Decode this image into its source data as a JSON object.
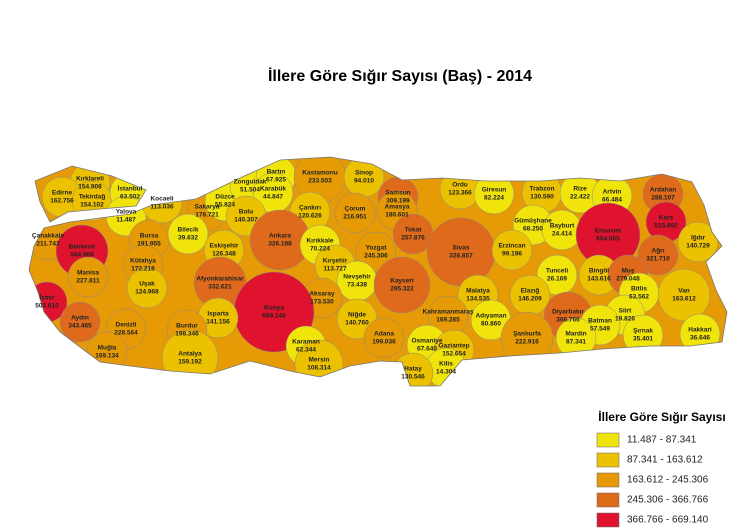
{
  "title": "İllere Göre Sığır Sayısı (Baş) - 2014",
  "legend": {
    "title": "İllere Göre Sığır Sayısı",
    "classes": [
      {
        "from": 11487,
        "to": 87341,
        "label": "11.487 - 87.341",
        "color": "#f0e40a"
      },
      {
        "from": 87341,
        "to": 163612,
        "label": "87.341 - 163.612",
        "color": "#ecc100"
      },
      {
        "from": 163612,
        "to": 245306,
        "label": "163.612 - 245.306",
        "color": "#e69a05"
      },
      {
        "from": 245306,
        "to": 366766,
        "label": "245.306 - 366.766",
        "color": "#df6a1c"
      },
      {
        "from": 366766,
        "to": 669140,
        "label": "366.766 - 669.140",
        "color": "#e0132e"
      }
    ]
  },
  "provinces": [
    {
      "name": "Kırklareli",
      "value": {
        "value": 154908,
        "label": "154.908"
      }
    },
    {
      "name": "Edirne",
      "value": {
        "value": 162756,
        "label": "162.756"
      }
    },
    {
      "name": "Tekirdağ",
      "value": {
        "value": 154102,
        "label": "154.102"
      }
    },
    {
      "name": "İstanbul",
      "value": {
        "value": 63502,
        "label": "63.502"
      }
    },
    {
      "name": "Yalova",
      "value": {
        "value": 11487,
        "label": "11.487"
      }
    },
    {
      "name": "Kocaeli",
      "value": {
        "value": 113036,
        "label": "113.036"
      }
    },
    {
      "name": "Sakarya",
      "value": {
        "value": 178721,
        "label": "178.721"
      }
    },
    {
      "name": "Düzce",
      "value": {
        "value": 55824,
        "label": "55.824"
      }
    },
    {
      "name": "Zonguldak",
      "value": {
        "value": 51504,
        "label": "51.504"
      }
    },
    {
      "name": "Bartın",
      "value": {
        "value": 67925,
        "label": "67.925"
      }
    },
    {
      "name": "Karabük",
      "value": {
        "value": 44847,
        "label": "44.847"
      }
    },
    {
      "name": "Bolu",
      "value": {
        "value": 140307,
        "label": "140.307"
      }
    },
    {
      "name": "Kastamonu",
      "value": {
        "value": 233503,
        "label": "233.503"
      }
    },
    {
      "name": "Sinop",
      "value": {
        "value": 94010,
        "label": "94.010"
      }
    },
    {
      "name": "Samsun",
      "value": {
        "value": 309199,
        "label": "309.199"
      }
    },
    {
      "name": "Çankırı",
      "value": {
        "value": 120626,
        "label": "120.626"
      }
    },
    {
      "name": "Çorum",
      "value": {
        "value": 216951,
        "label": "216.951"
      }
    },
    {
      "name": "Amasya",
      "value": {
        "value": 180601,
        "label": "180.601"
      }
    },
    {
      "name": "Ordu",
      "value": {
        "value": 123366,
        "label": "123.366"
      }
    },
    {
      "name": "Giresun",
      "value": {
        "value": 82224,
        "label": "82.224"
      }
    },
    {
      "name": "Trabzon",
      "value": {
        "value": 130590,
        "label": "130.590"
      }
    },
    {
      "name": "Rize",
      "value": {
        "value": 22422,
        "label": "22.422"
      }
    },
    {
      "name": "Artvin",
      "value": {
        "value": 66484,
        "label": "66.484"
      }
    },
    {
      "name": "Ardahan",
      "value": {
        "value": 288107,
        "label": "288.107"
      }
    },
    {
      "name": "Kars",
      "value": {
        "value": 515892,
        "label": "515.892"
      }
    },
    {
      "name": "Iğdır",
      "value": {
        "value": 140729,
        "label": "140.729"
      }
    },
    {
      "name": "Çanakkale",
      "value": {
        "value": 211743,
        "label": "211.743"
      }
    },
    {
      "name": "Bursa",
      "value": {
        "value": 191955,
        "label": "191.955"
      }
    },
    {
      "name": "Bilecik",
      "value": {
        "value": 39632,
        "label": "39.632"
      }
    },
    {
      "name": "Balıkesir",
      "value": {
        "value": 564969,
        "label": "564.969"
      }
    },
    {
      "name": "Eskişehir",
      "value": {
        "value": 126348,
        "label": "126.348"
      }
    },
    {
      "name": "Ankara",
      "value": {
        "value": 326188,
        "label": "326.188"
      }
    },
    {
      "name": "Kırıkkale",
      "value": {
        "value": 70224,
        "label": "70.224"
      }
    },
    {
      "name": "Yozgat",
      "value": {
        "value": 245306,
        "label": "245.306"
      }
    },
    {
      "name": "Tokat",
      "value": {
        "value": 257876,
        "label": "257.876"
      }
    },
    {
      "name": "Sivas",
      "value": {
        "value": 326857,
        "label": "326.857"
      }
    },
    {
      "name": "Gümüşhane",
      "value": {
        "value": 68250,
        "label": "68.250"
      }
    },
    {
      "name": "Bayburt",
      "value": {
        "value": 24414,
        "label": "24.414"
      }
    },
    {
      "name": "Erzurum",
      "value": {
        "value": 604065,
        "label": "604.065"
      }
    },
    {
      "name": "Erzincan",
      "value": {
        "value": 99196,
        "label": "99.196"
      }
    },
    {
      "name": "Ağrı",
      "value": {
        "value": 321710,
        "label": "321.710"
      }
    },
    {
      "name": "Kütahya",
      "value": {
        "value": 172218,
        "label": "172.218"
      }
    },
    {
      "name": "Kırşehir",
      "value": {
        "value": 113727,
        "label": "113.727"
      }
    },
    {
      "name": "Nevşehir",
      "value": {
        "value": 73438,
        "label": "73.438"
      }
    },
    {
      "name": "Kayseri",
      "value": {
        "value": 295322,
        "label": "295.322"
      }
    },
    {
      "name": "Tunceli",
      "value": {
        "value": 26169,
        "label": "26.169"
      }
    },
    {
      "name": "Bingöl",
      "value": {
        "value": 143616,
        "label": "143.616"
      }
    },
    {
      "name": "Muş",
      "value": {
        "value": 279048,
        "label": "279.048"
      }
    },
    {
      "name": "Manisa",
      "value": {
        "value": 227811,
        "label": "227.811"
      }
    },
    {
      "name": "Afyonkarahisar",
      "value": {
        "value": 332621,
        "label": "332.621"
      }
    },
    {
      "name": "Uşak",
      "value": {
        "value": 124968,
        "label": "124.968"
      }
    },
    {
      "name": "Aksaray",
      "value": {
        "value": 173530,
        "label": "173.530"
      }
    },
    {
      "name": "Malatya",
      "value": {
        "value": 134535,
        "label": "134.535"
      }
    },
    {
      "name": "Elazığ",
      "value": {
        "value": 146209,
        "label": "146.209"
      }
    },
    {
      "name": "Bitlis",
      "value": {
        "value": 63562,
        "label": "63.562"
      }
    },
    {
      "name": "Van",
      "value": {
        "value": 163612,
        "label": "163.612"
      }
    },
    {
      "name": "İzmir",
      "value": {
        "value": 503615,
        "label": "503.615"
      }
    },
    {
      "name": "Konya",
      "value": {
        "value": 669140,
        "label": "669.140"
      }
    },
    {
      "name": "Niğde",
      "value": {
        "value": 140760,
        "label": "140.760"
      }
    },
    {
      "name": "Kahramanmaraş",
      "value": {
        "value": 169285,
        "label": "169.285"
      }
    },
    {
      "name": "Adıyaman",
      "value": {
        "value": 80860,
        "label": "80.860"
      }
    },
    {
      "name": "Diyarbakır",
      "value": {
        "value": 366766,
        "label": "366.766"
      }
    },
    {
      "name": "Siirt",
      "value": {
        "value": 19826,
        "label": "19.826"
      }
    },
    {
      "name": "Aydın",
      "value": {
        "value": 343465,
        "label": "343.465"
      }
    },
    {
      "name": "Denizli",
      "value": {
        "value": 228564,
        "label": "228.564"
      }
    },
    {
      "name": "Isparta",
      "value": {
        "value": 141156,
        "label": "141.156"
      }
    },
    {
      "name": "Burdur",
      "value": {
        "value": 198346,
        "label": "198.346"
      }
    },
    {
      "name": "Şırnak",
      "value": {
        "value": 35401,
        "label": "35.401"
      }
    },
    {
      "name": "Hakkari",
      "value": {
        "value": 36646,
        "label": "36.646"
      }
    },
    {
      "name": "Batman",
      "value": {
        "value": 57549,
        "label": "57.549"
      }
    },
    {
      "name": "Mardin",
      "value": {
        "value": 87341,
        "label": "87.341"
      }
    },
    {
      "name": "Muğla",
      "value": {
        "value": 169134,
        "label": "169.134"
      }
    },
    {
      "name": "Antalya",
      "value": {
        "value": 159192,
        "label": "159.192"
      }
    },
    {
      "name": "Karaman",
      "value": {
        "value": 62344,
        "label": "62.344"
      }
    },
    {
      "name": "Mersin",
      "value": {
        "value": 108314,
        "label": "108.314"
      }
    },
    {
      "name": "Adana",
      "value": {
        "value": 199036,
        "label": "199.036"
      }
    },
    {
      "name": "Osmaniye",
      "value": {
        "value": 67640,
        "label": "67.640"
      }
    },
    {
      "name": "Gaziantep",
      "value": {
        "value": 152654,
        "label": "152.654"
      }
    },
    {
      "name": "Şanlıurfa",
      "value": {
        "value": 222916,
        "label": "222.916"
      }
    },
    {
      "name": "Kilis",
      "value": {
        "value": 14304,
        "label": "14.304"
      }
    },
    {
      "name": "Hatay",
      "value": {
        "value": 130546,
        "label": "130.546"
      }
    }
  ]
}
